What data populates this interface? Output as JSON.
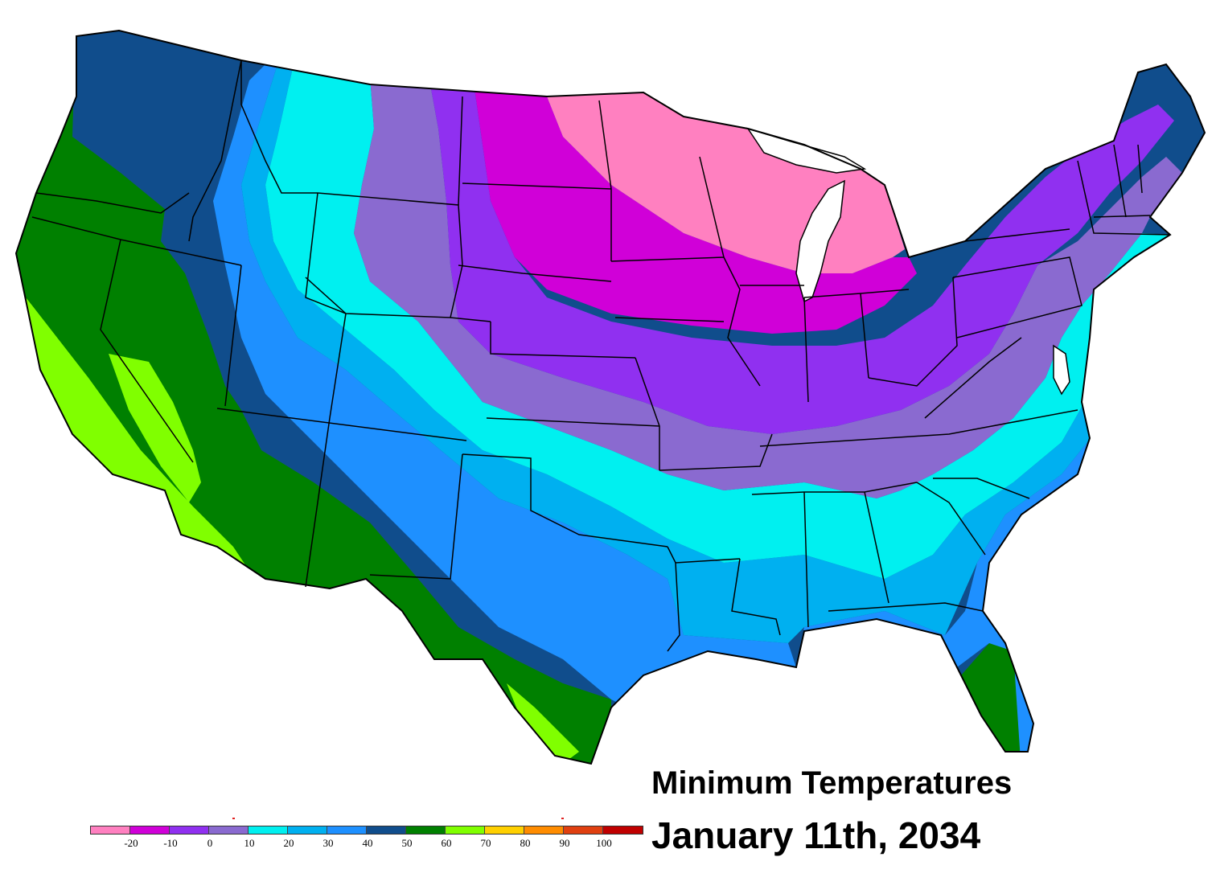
{
  "title": {
    "line1": "Minimum Temperatures",
    "line2": "January 11th, 2034"
  },
  "legend": {
    "bins": [
      {
        "color": "#ff80c0"
      },
      {
        "color": "#d000d8"
      },
      {
        "color": "#9030f0"
      },
      {
        "color": "#8a6ad0"
      },
      {
        "color": "#00f0f0"
      },
      {
        "color": "#00b0f0"
      },
      {
        "color": "#1e90ff"
      },
      {
        "color": "#104d8c"
      },
      {
        "color": "#008000"
      },
      {
        "color": "#80ff00"
      },
      {
        "color": "#ffd000"
      },
      {
        "color": "#ff8c00"
      },
      {
        "color": "#e04010"
      },
      {
        "color": "#c00000"
      }
    ],
    "labels": [
      "-20",
      "-10",
      "0",
      "10",
      "20",
      "30",
      "40",
      "50",
      "60",
      "70",
      "80",
      "90",
      "100"
    ]
  },
  "map": {
    "outline_color": "#000000",
    "water_color": "#ffffff"
  }
}
